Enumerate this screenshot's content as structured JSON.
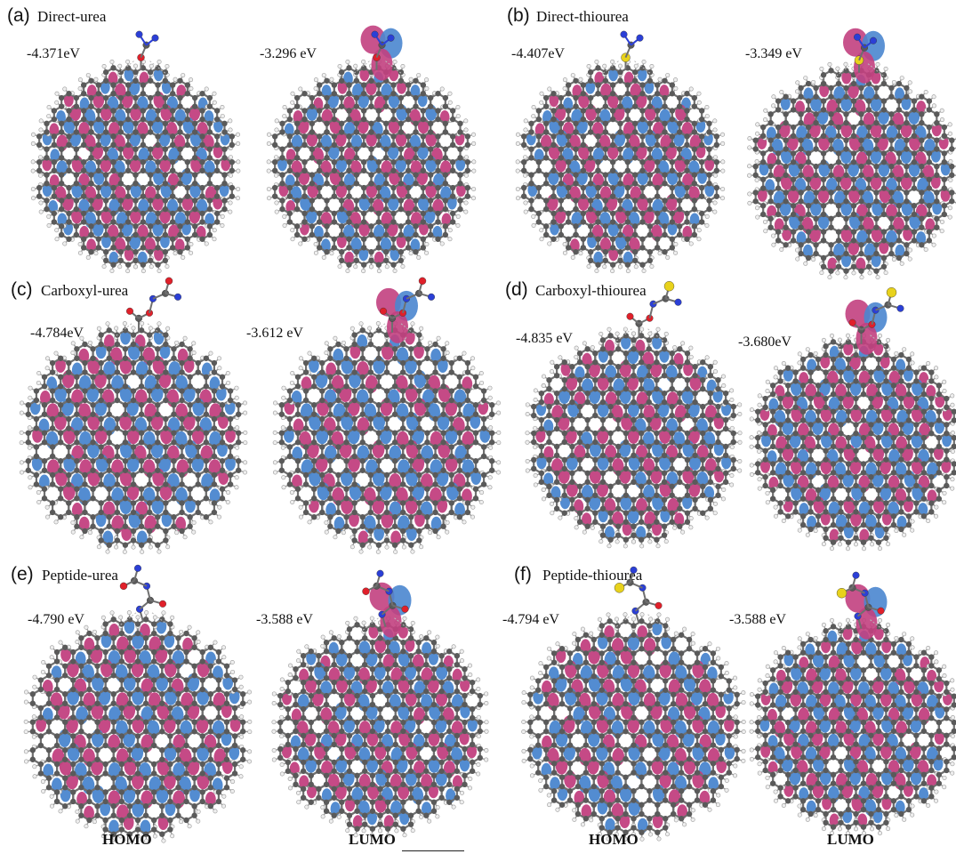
{
  "panels": [
    {
      "tag": "(a)",
      "title": "Direct-urea",
      "homo_energy": "-4.371eV",
      "lumo_energy": "-3.296 eV"
    },
    {
      "tag": "(b)",
      "title": "Direct-thiourea",
      "homo_energy": "-4.407eV",
      "lumo_energy": "-3.349 eV"
    },
    {
      "tag": "(c)",
      "title": "Carboxyl-urea",
      "homo_energy": "-4.784eV",
      "lumo_energy": "-3.612 eV"
    },
    {
      "tag": "(d)",
      "title": "Carboxyl-thiourea",
      "homo_energy": "-4.835 eV",
      "lumo_energy": "-3.680eV"
    },
    {
      "tag": "(e)",
      "title": "Peptide-urea",
      "homo_energy": "-4.790 eV",
      "lumo_energy": "-3.588 eV"
    },
    {
      "tag": "(f)",
      "title": "Peptide-thiourea",
      "homo_energy": "-4.794 eV",
      "lumo_energy": "-3.588 eV"
    }
  ],
  "footer": {
    "homo_left": "HOMO",
    "lumo_left": "LUMO",
    "homo_right": "HOMO",
    "lumo_right": "LUMO"
  },
  "colors": {
    "lobe_blue": "#4a86cf",
    "lobe_magenta": "#c2407f",
    "bond": "#6f6f6f",
    "carbon": "#5a5a5a",
    "hydrogen": "#eeeeee",
    "oxygen": "#e0202a",
    "nitrogen": "#2b3fd6",
    "sulfur": "#e8d21c"
  }
}
